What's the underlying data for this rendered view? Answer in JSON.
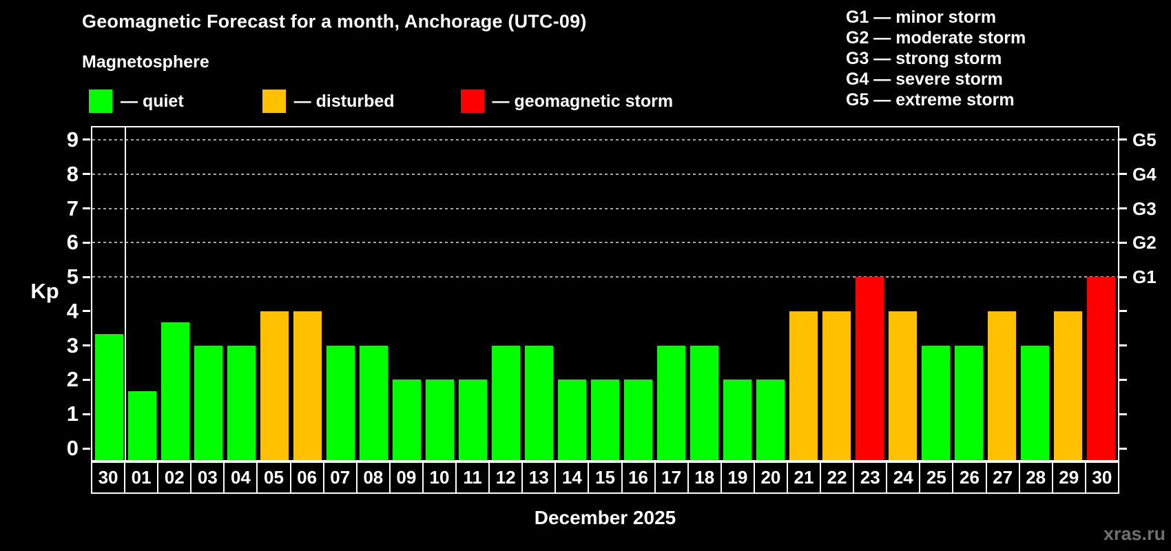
{
  "title": "Geomagnetic Forecast for a month, Anchorage (UTC-09)",
  "subtitle": "Magnetosphere",
  "legend": [
    {
      "name": "quiet",
      "color": "#00ff00",
      "label": "— quiet"
    },
    {
      "name": "disturbed",
      "color": "#ffc000",
      "label": "— disturbed"
    },
    {
      "name": "storm",
      "color": "#ff0000",
      "label": "— geomagnetic storm"
    }
  ],
  "storm_scale": [
    "G1 — minor storm",
    "G2 — moderate storm",
    "G3 — strong storm",
    "G4 — severe storm",
    "G5 — extreme storm"
  ],
  "palette": {
    "quiet": "#00ff00",
    "disturbed": "#ffc000",
    "storm": "#ff0000",
    "grid": "#a9a9a9",
    "frame": "#ffffff",
    "text": "#ffffff",
    "watermark": "#6f6f6f",
    "background": "#000000"
  },
  "chart_data": {
    "type": "bar",
    "title": "Geomagnetic Forecast for a month, Anchorage (UTC-09)",
    "ylabel": "Kp",
    "xlabel": "December 2025",
    "ylim": [
      -0.34,
      9.36
    ],
    "yticks": [
      0,
      1,
      2,
      3,
      4,
      5,
      6,
      7,
      8,
      9
    ],
    "grid_levels": [
      5,
      6,
      7,
      8,
      9
    ],
    "grid_style": "dashed",
    "legend_position": "top",
    "right_axis_labels": [
      {
        "kp": 5,
        "label": "G1"
      },
      {
        "kp": 6,
        "label": "G2"
      },
      {
        "kp": 7,
        "label": "G3"
      },
      {
        "kp": 8,
        "label": "G4"
      },
      {
        "kp": 9,
        "label": "G5"
      }
    ],
    "categories": [
      "30",
      "01",
      "02",
      "03",
      "04",
      "05",
      "06",
      "07",
      "08",
      "09",
      "10",
      "11",
      "12",
      "13",
      "14",
      "15",
      "16",
      "17",
      "18",
      "19",
      "20",
      "21",
      "22",
      "23",
      "24",
      "25",
      "26",
      "27",
      "28",
      "29",
      "30"
    ],
    "values": [
      3.33,
      1.67,
      3.67,
      3,
      3,
      4,
      4,
      3,
      3,
      2,
      2,
      2,
      3,
      3,
      2,
      2,
      2,
      3,
      3,
      2,
      2,
      4,
      4,
      5,
      4,
      3,
      3,
      4,
      3,
      4,
      5
    ],
    "color_rule": {
      "storm_min": 5,
      "disturbed_min": 4
    },
    "separator_after_index": 0
  },
  "watermark": "xras.ru"
}
